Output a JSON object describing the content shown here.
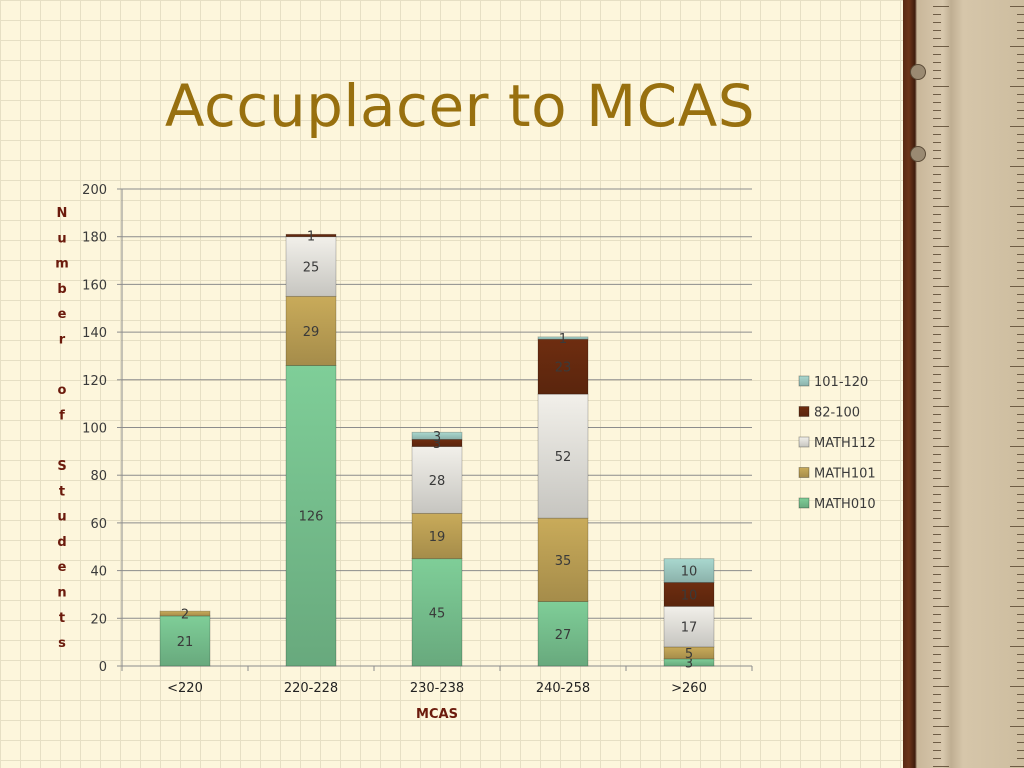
{
  "title": "Accuplacer to MCAS",
  "colors": {
    "title": "#98700f",
    "MATH010": "#7fce98",
    "MATH101": "#c9ab5a",
    "MATH112": "#f2f0ea",
    "82-100": "#6e2d10",
    "101-120": "#a9d8cf"
  },
  "chart_data": {
    "type": "bar",
    "stacked": true,
    "categories": [
      "<220",
      "220-228",
      "230-238",
      "240-258",
      ">260"
    ],
    "series": [
      {
        "name": "MATH010",
        "values": [
          21,
          126,
          45,
          27,
          3
        ]
      },
      {
        "name": "MATH101",
        "values": [
          2,
          29,
          19,
          35,
          5
        ]
      },
      {
        "name": "MATH112",
        "values": [
          0,
          25,
          28,
          52,
          17
        ]
      },
      {
        "name": "82-100",
        "values": [
          0,
          1,
          3,
          23,
          10
        ]
      },
      {
        "name": "101-120",
        "values": [
          0,
          0,
          3,
          1,
          10
        ]
      }
    ],
    "xlabel": "MCAS",
    "ylabel": "Number of Students",
    "ylim": [
      0,
      200
    ],
    "yticks": [
      0,
      20,
      40,
      60,
      80,
      100,
      120,
      140,
      160,
      180,
      200
    ],
    "grid": true,
    "legend_position": "right",
    "legend_order": [
      "101-120",
      "82-100",
      "MATH112",
      "MATH101",
      "MATH010"
    ]
  }
}
